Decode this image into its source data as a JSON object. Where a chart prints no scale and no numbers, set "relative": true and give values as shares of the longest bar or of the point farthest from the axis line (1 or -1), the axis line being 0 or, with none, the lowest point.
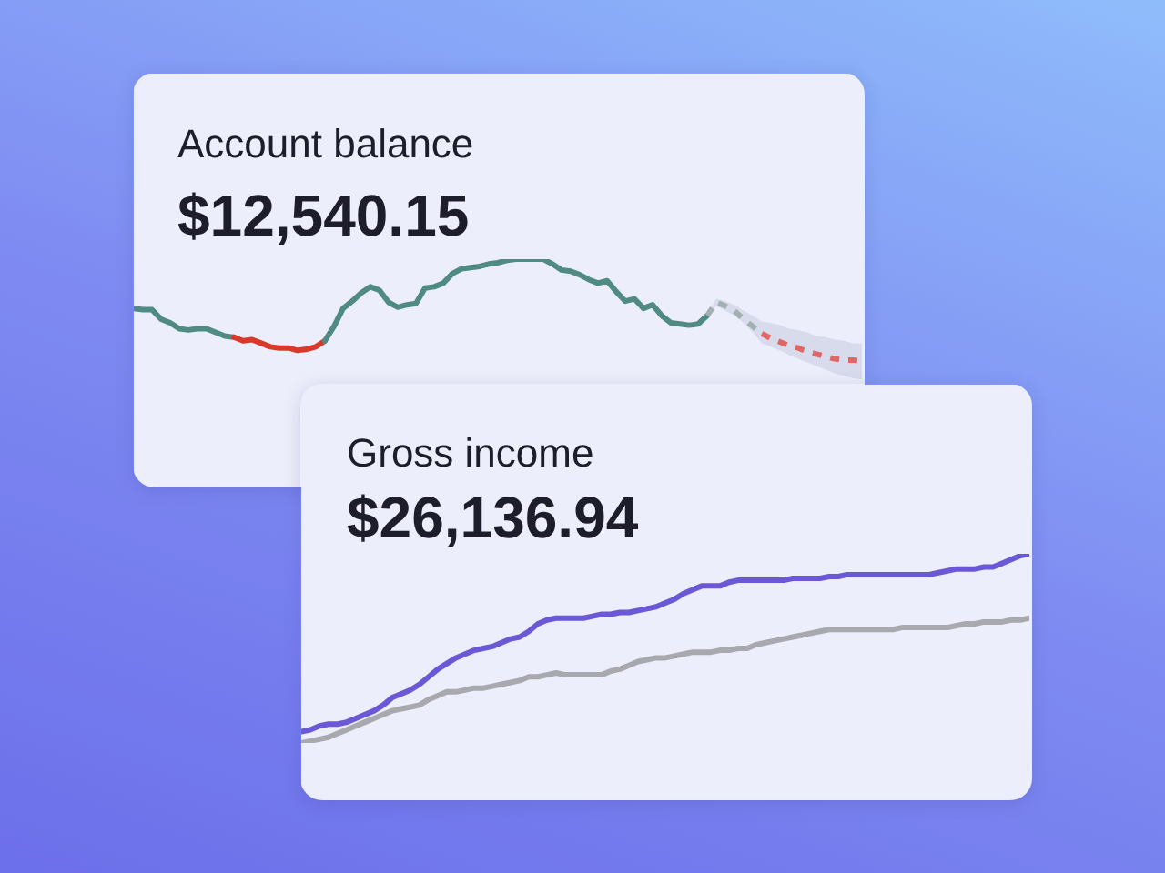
{
  "chart_data": [
    {
      "type": "line",
      "title": "Account balance",
      "subtitle": "$12,540.15",
      "relative": true,
      "categories": [
        null,
        null,
        null,
        null,
        null,
        null,
        null,
        null,
        null,
        null,
        null,
        null,
        null,
        null,
        null,
        null,
        null,
        null,
        null,
        null,
        null,
        null,
        null,
        null,
        null,
        null,
        null,
        null,
        null,
        null,
        null,
        null,
        null,
        null,
        null,
        null,
        null,
        null,
        null,
        null,
        null,
        null,
        null,
        null,
        null,
        null,
        null,
        null,
        null,
        null,
        null,
        null,
        null,
        null,
        null,
        null,
        null,
        null,
        null,
        null,
        null,
        null,
        null,
        null,
        null,
        null,
        null,
        null,
        null,
        null,
        null,
        null,
        null,
        null,
        null,
        null,
        null,
        null,
        null,
        null,
        null
      ],
      "series": [
        {
          "color": "#4f8a83",
          "values": [
            0.59,
            0.58,
            0.58,
            0.5,
            0.47,
            0.42,
            0.41,
            0.42,
            0.42,
            0.39,
            0.36,
            0.35,
            null,
            null,
            null,
            null,
            null,
            null,
            null,
            null,
            null,
            null,
            null,
            null,
            null,
            null,
            null,
            null,
            null,
            null,
            null,
            null,
            null,
            null,
            null,
            null,
            null,
            null,
            null,
            null,
            null,
            null,
            null,
            null,
            null,
            null,
            null,
            null,
            null,
            null,
            null,
            null,
            null,
            null,
            null,
            null,
            null,
            null,
            null,
            null,
            null,
            null,
            null,
            null,
            null,
            null,
            null,
            null,
            null,
            null,
            null,
            null,
            null,
            null,
            null,
            null,
            null,
            null,
            null,
            null,
            null
          ]
        },
        {
          "color": "#d8392b",
          "values": [
            null,
            null,
            null,
            null,
            null,
            null,
            null,
            null,
            null,
            null,
            null,
            0.35,
            0.32,
            0.33,
            0.3,
            0.27,
            0.26,
            0.26,
            0.24,
            0.25,
            0.27,
            0.32,
            null,
            null,
            null,
            null,
            null,
            null,
            null,
            null,
            null,
            null,
            null,
            null,
            null,
            null,
            null,
            null,
            null,
            null,
            null,
            null,
            null,
            null,
            null,
            null,
            null,
            null,
            null,
            null,
            null,
            null,
            null,
            null,
            null,
            null,
            null,
            null,
            null,
            null,
            null,
            null,
            null,
            null,
            null,
            null,
            null,
            null,
            null,
            null,
            null,
            null,
            null,
            null,
            null,
            null,
            null,
            null,
            null,
            null,
            null
          ]
        },
        {
          "color": "#4f8a83",
          "values": [
            null,
            null,
            null,
            null,
            null,
            null,
            null,
            null,
            null,
            null,
            null,
            null,
            null,
            null,
            null,
            null,
            null,
            null,
            null,
            null,
            null,
            0.32,
            0.44,
            0.59,
            0.65,
            0.72,
            0.77,
            0.74,
            0.64,
            0.6,
            0.62,
            0.63,
            0.76,
            0.77,
            0.8,
            0.88,
            0.92,
            0.93,
            0.94,
            0.96,
            0.97,
            0.99,
            1.0,
            1.0,
            1.0,
            1.0,
            0.96,
            0.91,
            0.9,
            0.87,
            0.83,
            0.8,
            0.82,
            0.73,
            0.65,
            0.67,
            0.59,
            0.62,
            0.53,
            0.47,
            0.46,
            0.45,
            0.46,
            0.53,
            null,
            null,
            null,
            null,
            null,
            null,
            null,
            null,
            null,
            null,
            null,
            null,
            null,
            null,
            null,
            null,
            null
          ]
        },
        {
          "color": "#a3b0b3",
          "line_style": "dashed",
          "values": [
            null,
            null,
            null,
            null,
            null,
            null,
            null,
            null,
            null,
            null,
            null,
            null,
            null,
            null,
            null,
            null,
            null,
            null,
            null,
            null,
            null,
            null,
            null,
            null,
            null,
            null,
            null,
            null,
            null,
            null,
            null,
            null,
            null,
            null,
            null,
            null,
            null,
            null,
            null,
            null,
            null,
            null,
            null,
            null,
            null,
            null,
            null,
            null,
            null,
            null,
            null,
            null,
            null,
            null,
            null,
            null,
            null,
            null,
            null,
            null,
            null,
            null,
            null,
            0.53,
            0.64,
            0.61,
            0.57,
            0.5,
            0.44,
            0.38,
            null,
            null,
            null,
            null,
            null,
            null,
            null,
            null,
            null,
            null,
            null
          ],
          "lower": [
            null,
            null,
            null,
            null,
            null,
            null,
            null,
            null,
            null,
            null,
            null,
            null,
            null,
            null,
            null,
            null,
            null,
            null,
            null,
            null,
            null,
            null,
            null,
            null,
            null,
            null,
            null,
            null,
            null,
            null,
            null,
            null,
            null,
            null,
            null,
            null,
            null,
            null,
            null,
            null,
            null,
            null,
            null,
            null,
            null,
            null,
            null,
            null,
            null,
            null,
            null,
            null,
            null,
            null,
            null,
            null,
            null,
            null,
            null,
            null,
            null,
            null,
            null,
            0.53,
            0.61,
            0.57,
            0.53,
            0.47,
            0.39,
            0.3,
            null,
            null,
            null,
            null,
            null,
            null,
            null,
            null,
            null,
            null,
            null
          ],
          "upper": [
            null,
            null,
            null,
            null,
            null,
            null,
            null,
            null,
            null,
            null,
            null,
            null,
            null,
            null,
            null,
            null,
            null,
            null,
            null,
            null,
            null,
            null,
            null,
            null,
            null,
            null,
            null,
            null,
            null,
            null,
            null,
            null,
            null,
            null,
            null,
            null,
            null,
            null,
            null,
            null,
            null,
            null,
            null,
            null,
            null,
            null,
            null,
            null,
            null,
            null,
            null,
            null,
            null,
            null,
            null,
            null,
            null,
            null,
            null,
            null,
            null,
            null,
            null,
            0.53,
            0.67,
            0.65,
            0.62,
            0.57,
            0.53,
            0.48,
            null,
            null,
            null,
            null,
            null,
            null,
            null,
            null,
            null,
            null,
            null
          ]
        },
        {
          "color": "#e06666",
          "line_style": "dashed",
          "values": [
            null,
            null,
            null,
            null,
            null,
            null,
            null,
            null,
            null,
            null,
            null,
            null,
            null,
            null,
            null,
            null,
            null,
            null,
            null,
            null,
            null,
            null,
            null,
            null,
            null,
            null,
            null,
            null,
            null,
            null,
            null,
            null,
            null,
            null,
            null,
            null,
            null,
            null,
            null,
            null,
            null,
            null,
            null,
            null,
            null,
            null,
            null,
            null,
            null,
            null,
            null,
            null,
            null,
            null,
            null,
            null,
            null,
            null,
            null,
            null,
            null,
            null,
            null,
            null,
            null,
            null,
            null,
            null,
            null,
            0.38,
            0.34,
            0.31,
            0.28,
            0.26,
            0.23,
            0.21,
            0.19,
            0.17,
            0.16,
            0.16,
            0.15
          ],
          "lower": [
            null,
            null,
            null,
            null,
            null,
            null,
            null,
            null,
            null,
            null,
            null,
            null,
            null,
            null,
            null,
            null,
            null,
            null,
            null,
            null,
            null,
            null,
            null,
            null,
            null,
            null,
            null,
            null,
            null,
            null,
            null,
            null,
            null,
            null,
            null,
            null,
            null,
            null,
            null,
            null,
            null,
            null,
            null,
            null,
            null,
            null,
            null,
            null,
            null,
            null,
            null,
            null,
            null,
            null,
            null,
            null,
            null,
            null,
            null,
            null,
            null,
            null,
            null,
            null,
            null,
            null,
            null,
            null,
            null,
            0.3,
            0.27,
            0.24,
            0.2,
            0.17,
            0.14,
            0.11,
            0.08,
            0.05,
            0.03,
            0.01,
            0.0
          ],
          "upper": [
            null,
            null,
            null,
            null,
            null,
            null,
            null,
            null,
            null,
            null,
            null,
            null,
            null,
            null,
            null,
            null,
            null,
            null,
            null,
            null,
            null,
            null,
            null,
            null,
            null,
            null,
            null,
            null,
            null,
            null,
            null,
            null,
            null,
            null,
            null,
            null,
            null,
            null,
            null,
            null,
            null,
            null,
            null,
            null,
            null,
            null,
            null,
            null,
            null,
            null,
            null,
            null,
            null,
            null,
            null,
            null,
            null,
            null,
            null,
            null,
            null,
            null,
            null,
            null,
            null,
            null,
            null,
            null,
            null,
            0.48,
            0.47,
            0.45,
            0.42,
            0.41,
            0.39,
            0.36,
            0.35,
            0.33,
            0.32,
            0.3,
            0.3
          ]
        }
      ]
    },
    {
      "type": "line",
      "title": "Gross income",
      "subtitle": "$26,136.94",
      "relative": true,
      "categories": [
        null,
        null,
        null,
        null,
        null,
        null,
        null,
        null,
        null,
        null,
        null,
        null,
        null,
        null,
        null,
        null,
        null,
        null,
        null,
        null,
        null,
        null,
        null,
        null,
        null,
        null,
        null,
        null,
        null,
        null,
        null,
        null,
        null,
        null,
        null,
        null,
        null,
        null,
        null,
        null,
        null,
        null,
        null,
        null,
        null,
        null,
        null,
        null,
        null,
        null,
        null,
        null,
        null,
        null,
        null,
        null,
        null,
        null,
        null,
        null,
        null,
        null,
        null,
        null,
        null,
        null,
        null,
        null,
        null,
        null,
        null,
        null,
        null,
        null,
        null,
        null,
        null,
        null,
        null,
        null,
        null
      ],
      "series": [
        {
          "color": "#a8a8ae",
          "values": [
            0.0,
            0.01,
            0.02,
            0.03,
            0.05,
            0.07,
            0.09,
            0.11,
            0.13,
            0.15,
            0.17,
            0.18,
            0.19,
            0.2,
            0.23,
            0.25,
            0.27,
            0.27,
            0.28,
            0.29,
            0.29,
            0.3,
            0.31,
            0.32,
            0.33,
            0.35,
            0.35,
            0.36,
            0.37,
            0.36,
            0.36,
            0.36,
            0.36,
            0.36,
            0.38,
            0.39,
            0.41,
            0.43,
            0.44,
            0.45,
            0.45,
            0.46,
            0.47,
            0.48,
            0.48,
            0.48,
            0.49,
            0.49,
            0.5,
            0.5,
            0.52,
            0.53,
            0.54,
            0.55,
            0.56,
            0.57,
            0.58,
            0.59,
            0.6,
            0.6,
            0.6,
            0.6,
            0.6,
            0.6,
            0.6,
            0.6,
            0.61,
            0.61,
            0.61,
            0.61,
            0.61,
            0.61,
            0.62,
            0.63,
            0.63,
            0.64,
            0.64,
            0.64,
            0.65,
            0.65,
            0.66
          ]
        },
        {
          "color": "#6a58d6",
          "values": [
            0.06,
            0.07,
            0.09,
            0.1,
            0.1,
            0.11,
            0.13,
            0.15,
            0.17,
            0.2,
            0.24,
            0.26,
            0.28,
            0.31,
            0.35,
            0.39,
            0.42,
            0.45,
            0.47,
            0.49,
            0.5,
            0.51,
            0.53,
            0.55,
            0.56,
            0.59,
            0.63,
            0.65,
            0.66,
            0.66,
            0.66,
            0.66,
            0.67,
            0.68,
            0.68,
            0.69,
            0.69,
            0.7,
            0.71,
            0.72,
            0.74,
            0.76,
            0.79,
            0.81,
            0.83,
            0.83,
            0.83,
            0.85,
            0.86,
            0.86,
            0.86,
            0.86,
            0.86,
            0.86,
            0.87,
            0.87,
            0.87,
            0.87,
            0.88,
            0.88,
            0.89,
            0.89,
            0.89,
            0.89,
            0.89,
            0.89,
            0.89,
            0.89,
            0.89,
            0.89,
            0.9,
            0.91,
            0.92,
            0.92,
            0.92,
            0.93,
            0.93,
            0.95,
            0.97,
            0.99,
            1.0
          ]
        }
      ]
    }
  ]
}
